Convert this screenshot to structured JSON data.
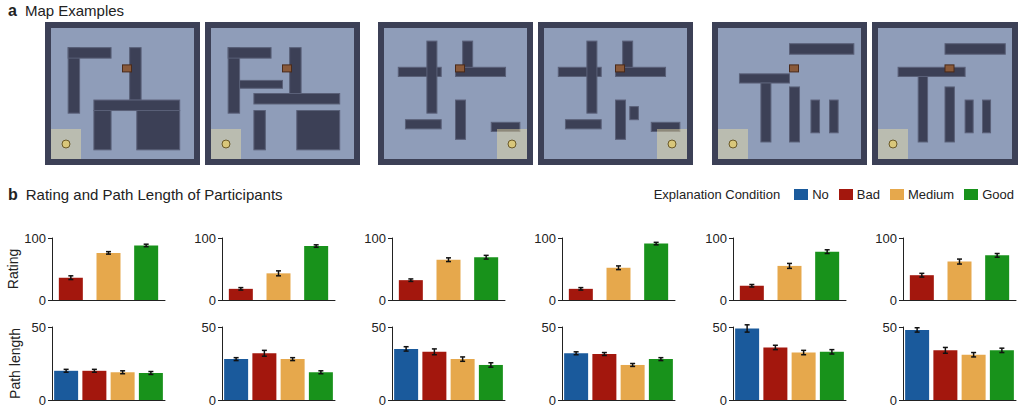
{
  "panel_a": {
    "letter": "a",
    "title": "Map Examples"
  },
  "panel_b": {
    "letter": "b",
    "title": "Rating and Path Length of Participants",
    "legend_title": "Explanation Condition",
    "conditions": [
      {
        "name": "No",
        "color": "#1a5a9c"
      },
      {
        "name": "Bad",
        "color": "#a3170d"
      },
      {
        "name": "Medium",
        "color": "#e6a84c"
      },
      {
        "name": "Good",
        "color": "#18921b"
      }
    ]
  },
  "chart_data": [
    {
      "type": "bar",
      "ylabel": "Rating",
      "categories": [
        "Bad",
        "Medium",
        "Good"
      ],
      "values": [
        36,
        76,
        88
      ],
      "errors": [
        3,
        2,
        2
      ],
      "colors": [
        "#a3170d",
        "#e6a84c",
        "#18921b"
      ],
      "ylim": [
        0,
        100
      ],
      "yticks": [
        0,
        100
      ],
      "tick_labels": "y"
    },
    {
      "type": "bar",
      "categories": [
        "Bad",
        "Medium",
        "Good"
      ],
      "values": [
        18,
        43,
        87
      ],
      "errors": [
        2,
        4,
        2
      ],
      "colors": [
        "#a3170d",
        "#e6a84c",
        "#18921b"
      ],
      "ylim": [
        0,
        100
      ],
      "yticks": [
        0,
        100
      ],
      "tick_labels": "y"
    },
    {
      "type": "bar",
      "categories": [
        "Bad",
        "Medium",
        "Good"
      ],
      "values": [
        32,
        65,
        69
      ],
      "errors": [
        2,
        3,
        3
      ],
      "colors": [
        "#a3170d",
        "#e6a84c",
        "#18921b"
      ],
      "ylim": [
        0,
        100
      ],
      "yticks": [
        0,
        100
      ],
      "tick_labels": "y"
    },
    {
      "type": "bar",
      "categories": [
        "Bad",
        "Medium",
        "Good"
      ],
      "values": [
        18,
        52,
        91
      ],
      "errors": [
        2,
        3,
        2
      ],
      "colors": [
        "#a3170d",
        "#e6a84c",
        "#18921b"
      ],
      "ylim": [
        0,
        100
      ],
      "yticks": [
        0,
        100
      ],
      "tick_labels": "y"
    },
    {
      "type": "bar",
      "categories": [
        "Bad",
        "Medium",
        "Good"
      ],
      "values": [
        23,
        55,
        78
      ],
      "errors": [
        2,
        4,
        3
      ],
      "colors": [
        "#a3170d",
        "#e6a84c",
        "#18921b"
      ],
      "ylim": [
        0,
        100
      ],
      "yticks": [
        0,
        100
      ],
      "tick_labels": "y"
    },
    {
      "type": "bar",
      "categories": [
        "Bad",
        "Medium",
        "Good"
      ],
      "values": [
        40,
        62,
        72
      ],
      "errors": [
        3,
        4,
        3
      ],
      "colors": [
        "#a3170d",
        "#e6a84c",
        "#18921b"
      ],
      "ylim": [
        0,
        100
      ],
      "yticks": [
        0,
        100
      ],
      "tick_labels": "y"
    },
    {
      "type": "bar",
      "ylabel": "Path length",
      "categories": [
        "No",
        "Bad",
        "Medium",
        "Good"
      ],
      "values": [
        20,
        20,
        19,
        18.5
      ],
      "errors": [
        1,
        1,
        1,
        1
      ],
      "colors": [
        "#1a5a9c",
        "#a3170d",
        "#e6a84c",
        "#18921b"
      ],
      "ylim": [
        0,
        50
      ],
      "yticks": [
        0,
        50
      ],
      "tick_labels": "y"
    },
    {
      "type": "bar",
      "categories": [
        "No",
        "Bad",
        "Medium",
        "Good"
      ],
      "values": [
        28,
        32,
        28,
        19
      ],
      "errors": [
        1,
        2,
        1,
        1
      ],
      "colors": [
        "#1a5a9c",
        "#a3170d",
        "#e6a84c",
        "#18921b"
      ],
      "ylim": [
        0,
        50
      ],
      "yticks": [
        0,
        50
      ],
      "tick_labels": "y"
    },
    {
      "type": "bar",
      "categories": [
        "No",
        "Bad",
        "Medium",
        "Good"
      ],
      "values": [
        35,
        33,
        28,
        24
      ],
      "errors": [
        1.5,
        2,
        1.5,
        1.5
      ],
      "colors": [
        "#1a5a9c",
        "#a3170d",
        "#e6a84c",
        "#18921b"
      ],
      "ylim": [
        0,
        50
      ],
      "yticks": [
        0,
        50
      ],
      "tick_labels": "y"
    },
    {
      "type": "bar",
      "categories": [
        "No",
        "Bad",
        "Medium",
        "Good"
      ],
      "values": [
        32,
        31.5,
        24,
        28
      ],
      "errors": [
        1,
        1,
        1,
        1
      ],
      "colors": [
        "#1a5a9c",
        "#a3170d",
        "#e6a84c",
        "#18921b"
      ],
      "ylim": [
        0,
        50
      ],
      "yticks": [
        0,
        50
      ],
      "tick_labels": "y"
    },
    {
      "type": "bar",
      "categories": [
        "No",
        "Bad",
        "Medium",
        "Good"
      ],
      "values": [
        49,
        36,
        32.5,
        33
      ],
      "errors": [
        2.5,
        1.5,
        1.5,
        1.5
      ],
      "colors": [
        "#1a5a9c",
        "#a3170d",
        "#e6a84c",
        "#18921b"
      ],
      "ylim": [
        0,
        50
      ],
      "yticks": [
        0,
        50
      ],
      "tick_labels": "y"
    },
    {
      "type": "bar",
      "categories": [
        "No",
        "Bad",
        "Medium",
        "Good"
      ],
      "values": [
        48,
        34,
        31,
        34
      ],
      "errors": [
        1.5,
        2,
        1.5,
        1.5
      ],
      "colors": [
        "#1a5a9c",
        "#a3170d",
        "#e6a84c",
        "#18921b"
      ],
      "ylim": [
        0,
        50
      ],
      "yticks": [
        0,
        50
      ],
      "tick_labels": "y"
    }
  ]
}
